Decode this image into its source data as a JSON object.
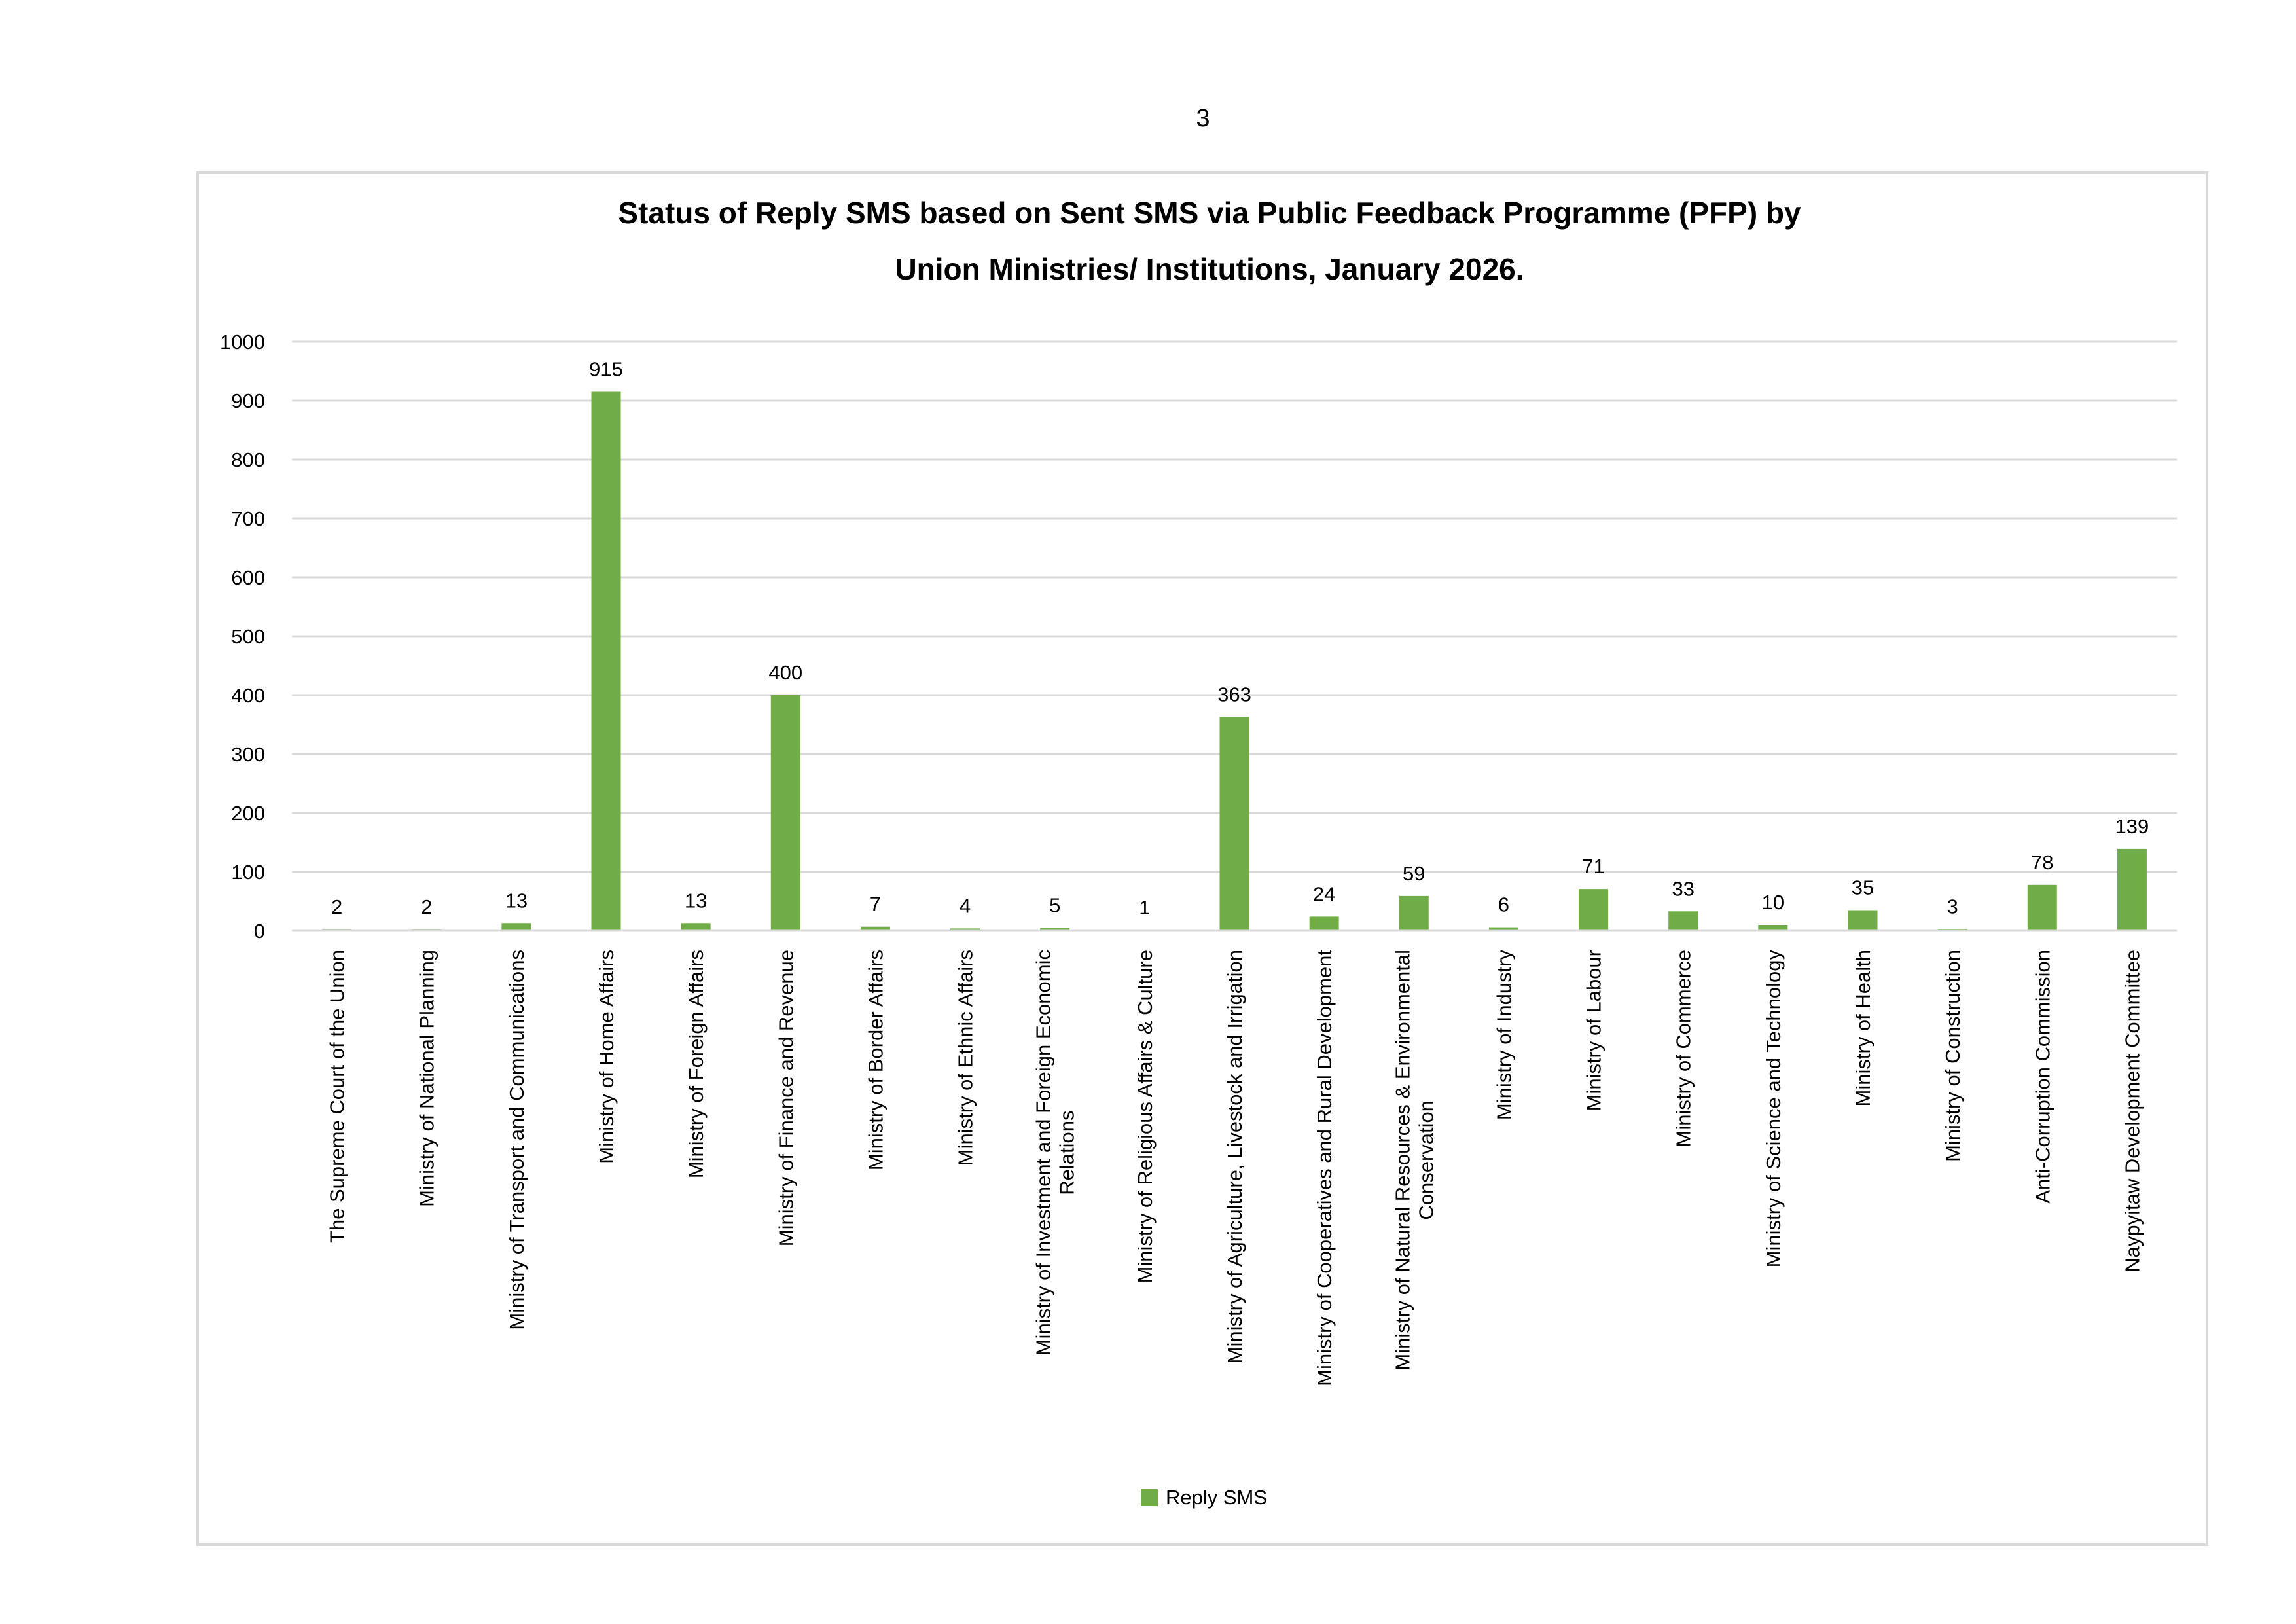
{
  "page_number": "3",
  "chart_data": {
    "type": "bar",
    "title": [
      "Status of Reply SMS based on Sent SMS via Public Feedback Programme (PFP) by",
      "Union Ministries/ Institutions, January 2026."
    ],
    "xlabel": "",
    "ylabel": "",
    "ylim": [
      0,
      1000
    ],
    "yticks": [
      "0",
      "100",
      "200",
      "300",
      "400",
      "500",
      "600",
      "700",
      "800",
      "900",
      "1000"
    ],
    "grid": true,
    "legend_position": "bottom",
    "categories": [
      [
        "The Supreme Court of the Union"
      ],
      [
        "Ministry of National Planning"
      ],
      [
        "Ministry of Transport and Communications"
      ],
      [
        "Ministry of Home Affairs"
      ],
      [
        "Ministry of Foreign Affairs"
      ],
      [
        "Ministry of Finance and Revenue"
      ],
      [
        "Ministry of Border Affairs"
      ],
      [
        "Ministry of Ethnic Affairs"
      ],
      [
        "Ministry of Investment and Foreign Economic",
        "Relations"
      ],
      [
        "Ministry of Religious Affairs & Culture"
      ],
      [
        "Ministry of Agriculture, Livestock and Irrigation"
      ],
      [
        "Ministry of Cooperatives and Rural Development"
      ],
      [
        "Ministry of Natural Resources & Environmental",
        "Conservation"
      ],
      [
        "Ministry of Industry"
      ],
      [
        "Ministry of Labour"
      ],
      [
        "Ministry of Commerce"
      ],
      [
        "Ministry of Science and Technology"
      ],
      [
        "Ministry of Health"
      ],
      [
        "Ministry of Construction"
      ],
      [
        "Anti-Corruption Commission"
      ],
      [
        "Naypyitaw Development Committee"
      ]
    ],
    "series": [
      {
        "name": "Reply SMS",
        "color": "#70AD47",
        "values": [
          2,
          2,
          13,
          915,
          13,
          400,
          7,
          4,
          5,
          1,
          363,
          24,
          59,
          6,
          71,
          33,
          10,
          35,
          3,
          78,
          139
        ]
      }
    ]
  }
}
